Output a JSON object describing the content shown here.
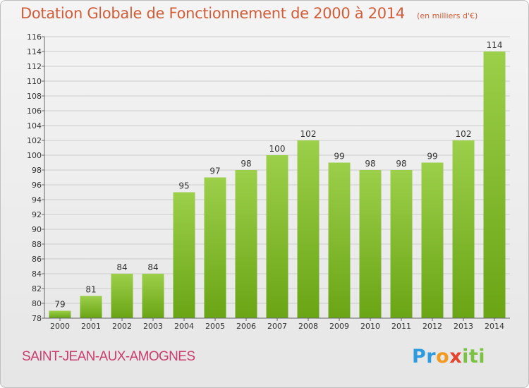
{
  "header": {
    "title": "Dotation Globale de Fonctionnement de 2000 à 2014",
    "unit": "(en milliers d'€)"
  },
  "commune": "SAINT-JEAN-AUX-AMOGNES",
  "logo": {
    "text": "Proxiti",
    "letters": [
      {
        "ch": "P",
        "color": "#2c9be0"
      },
      {
        "ch": "r",
        "color": "#2c9be0"
      },
      {
        "ch": "o",
        "color": "#f29a1f"
      },
      {
        "ch": "x",
        "color": "#e6432f"
      },
      {
        "ch": "i",
        "color": "#7cc242"
      },
      {
        "ch": "t",
        "color": "#7cc242"
      },
      {
        "ch": "i",
        "color": "#7cc242"
      }
    ]
  },
  "colors": {
    "bar_light": "#9ccf4a",
    "bar_dark": "#6aa515",
    "axis": "#666666",
    "grid": "#cccccc",
    "title": "#d25c37",
    "commune": "#cc3c6e"
  },
  "chart_data": {
    "type": "bar",
    "title": "Dotation Globale de Fonctionnement de 2000 à 2014",
    "subtitle": "(en milliers d'€)",
    "xlabel": "",
    "ylabel": "",
    "categories": [
      "2000",
      "2001",
      "2002",
      "2003",
      "2004",
      "2005",
      "2006",
      "2007",
      "2008",
      "2009",
      "2010",
      "2011",
      "2012",
      "2013",
      "2014"
    ],
    "values": [
      79,
      81,
      84,
      84,
      95,
      97,
      98,
      100,
      102,
      99,
      98,
      98,
      99,
      102,
      114
    ],
    "ylim": [
      78,
      116
    ],
    "yticks": [
      78,
      80,
      82,
      84,
      86,
      88,
      90,
      92,
      94,
      96,
      98,
      100,
      102,
      104,
      106,
      108,
      110,
      112,
      114,
      116
    ],
    "grid": true,
    "data_labels": true
  }
}
